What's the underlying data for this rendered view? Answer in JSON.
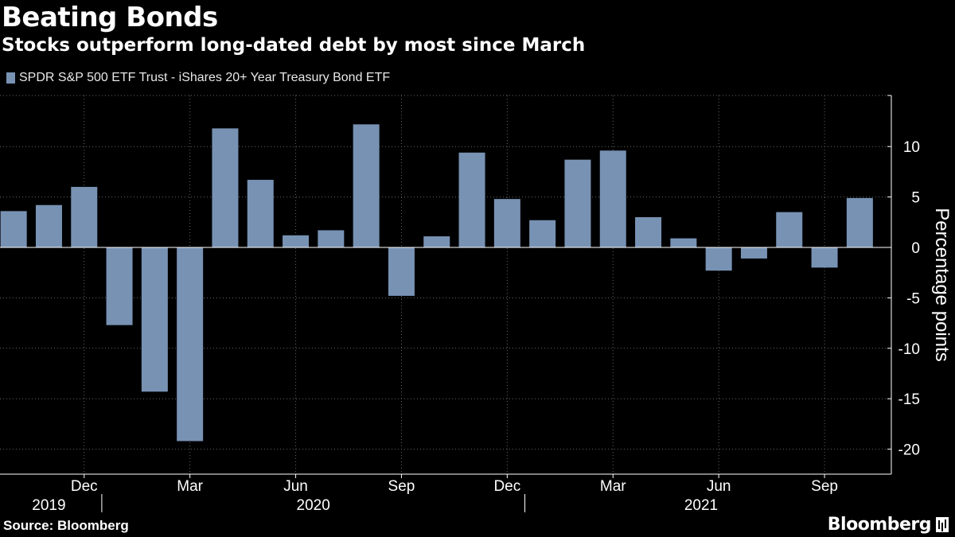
{
  "header": {
    "title": "Beating Bonds",
    "subtitle": "Stocks outperform long-dated debt by most since March"
  },
  "legend": {
    "label": "SPDR S&P 500 ETF Trust - iShares 20+ Year Treasury Bond ETF",
    "color": "#7892b4"
  },
  "colors": {
    "background": "#000000",
    "bar": "#7892b4",
    "grid": "#666666",
    "text": "#ffffff"
  },
  "footer": {
    "source": "Source: Bloomberg",
    "brand": "Bloomberg"
  },
  "chart_data": {
    "type": "bar",
    "title": "Beating Bonds",
    "subtitle": "Stocks outperform long-dated debt by most since March",
    "categories": [
      "2019-10",
      "2019-11",
      "2019-12",
      "2020-01",
      "2020-02",
      "2020-03",
      "2020-04",
      "2020-05",
      "2020-06",
      "2020-07",
      "2020-08",
      "2020-09",
      "2020-10",
      "2020-11",
      "2020-12",
      "2021-01",
      "2021-02",
      "2021-03",
      "2021-04",
      "2021-05",
      "2021-06",
      "2021-07",
      "2021-08",
      "2021-09",
      "2021-10"
    ],
    "series": [
      {
        "name": "SPDR S&P 500 ETF Trust - iShares 20+ Year Treasury Bond ETF",
        "values": [
          3.6,
          4.2,
          6.0,
          -7.7,
          -14.3,
          -19.2,
          11.8,
          6.7,
          1.2,
          1.7,
          12.2,
          -4.8,
          1.1,
          9.4,
          4.8,
          2.7,
          8.7,
          9.6,
          3.0,
          0.9,
          -2.3,
          -1.1,
          3.5,
          -2.0,
          4.9
        ]
      }
    ],
    "xlabel": "",
    "ylabel": "Percentage points",
    "ylim": [
      -22,
      15
    ],
    "yticks": [
      10,
      5,
      0,
      -5,
      -10,
      -15,
      -20
    ],
    "ytick_labels": [
      "10",
      "5",
      "0",
      "-5",
      "-10",
      "-15",
      "-20"
    ],
    "month_ticks": [
      {
        "label": "Dec",
        "index": 2
      },
      {
        "label": "Mar",
        "index": 5
      },
      {
        "label": "Jun",
        "index": 8
      },
      {
        "label": "Sep",
        "index": 11
      },
      {
        "label": "Dec",
        "index": 14
      },
      {
        "label": "Mar",
        "index": 17
      },
      {
        "label": "Jun",
        "index": 20
      },
      {
        "label": "Sep",
        "index": 23
      }
    ],
    "year_labels": [
      {
        "label": "2019",
        "first": 0,
        "last": 2
      },
      {
        "label": "2020",
        "first": 3,
        "last": 14
      },
      {
        "label": "2021",
        "first": 15,
        "last": 24
      }
    ],
    "grid": true,
    "legend_position": "top-left"
  }
}
